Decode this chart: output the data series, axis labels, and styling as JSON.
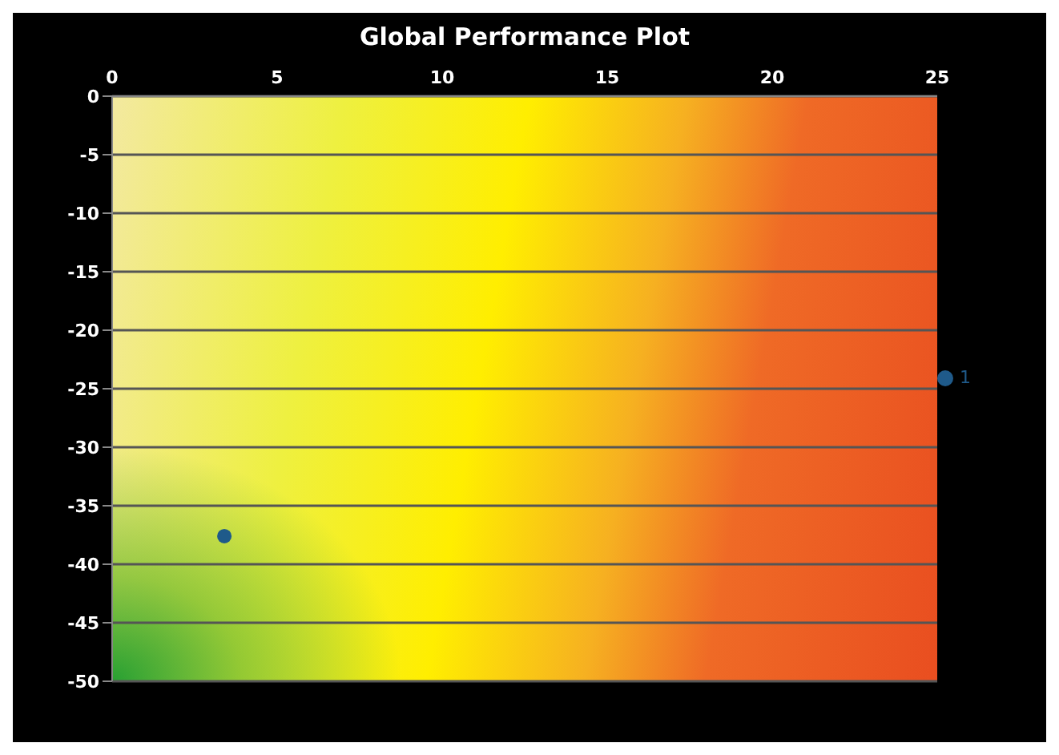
{
  "chart_data": {
    "type": "scatter",
    "title": "Global Performance Plot",
    "series": [
      {
        "name": "1",
        "color": "#1f5a8a",
        "x": [
          3.4
        ],
        "values": [
          -37.6
        ]
      }
    ],
    "xlim": [
      0,
      25
    ],
    "xticks": [
      0,
      5,
      10,
      15,
      20,
      25
    ],
    "ylim": [
      -50,
      0
    ],
    "yticks": [
      0,
      -5,
      -10,
      -15,
      -20,
      -25,
      -30,
      -35,
      -40,
      -45,
      -50
    ],
    "grid": "y",
    "legend": "right",
    "marker": "circle"
  }
}
